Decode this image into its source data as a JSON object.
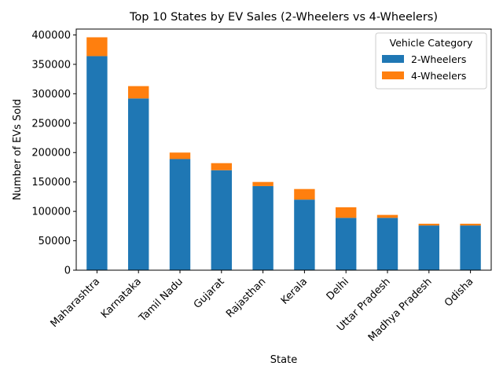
{
  "chart_data": {
    "type": "bar",
    "stacked": true,
    "title": "Top 10 States by EV Sales (2-Wheelers vs 4-Wheelers)",
    "xlabel": "State",
    "ylabel": "Number of EVs Sold",
    "categories": [
      "Maharashtra",
      "Karnataka",
      "Tamil Nadu",
      "Gujarat",
      "Rajasthan",
      "Kerala",
      "Delhi",
      "Uttar Pradesh",
      "Madhya Pradesh",
      "Odisha"
    ],
    "series": [
      {
        "name": "2-Wheelers",
        "color": "#1f77b4",
        "values": [
          364000,
          292000,
          189000,
          170000,
          143000,
          120000,
          89000,
          89000,
          76000,
          76000
        ]
      },
      {
        "name": "4-Wheelers",
        "color": "#ff7f0e",
        "values": [
          32000,
          21000,
          11000,
          12000,
          7000,
          18000,
          18000,
          5000,
          3000,
          3000
        ]
      }
    ],
    "ylim": [
      0,
      410000
    ],
    "yticks": [
      0,
      50000,
      100000,
      150000,
      200000,
      250000,
      300000,
      350000,
      400000
    ],
    "ytick_labels": [
      "0",
      "50000",
      "100000",
      "150000",
      "200000",
      "250000",
      "300000",
      "350000",
      "400000"
    ],
    "legend": {
      "title": "Vehicle Category",
      "position": "top-right"
    },
    "grid": false
  }
}
